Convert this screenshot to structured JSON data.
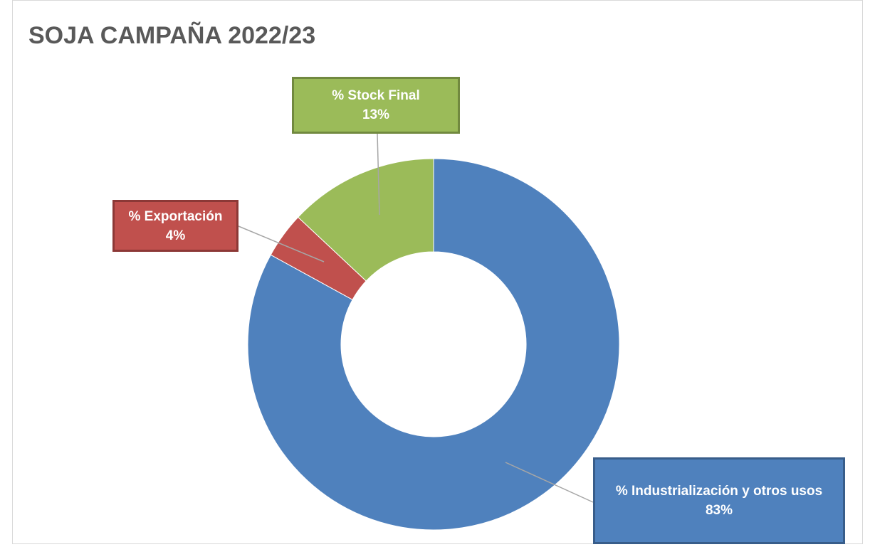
{
  "chart_data": {
    "type": "donut",
    "title": "SOJA CAMPAÑA 2022/23",
    "categories": [
      "% Industrialización y otros usos",
      "% Exportación",
      "% Stock Final"
    ],
    "values": [
      83,
      4,
      13
    ],
    "value_labels": [
      "83%",
      "4%",
      "13%"
    ],
    "colors": [
      "#4f81bd",
      "#c0504d",
      "#9bbb59"
    ]
  }
}
